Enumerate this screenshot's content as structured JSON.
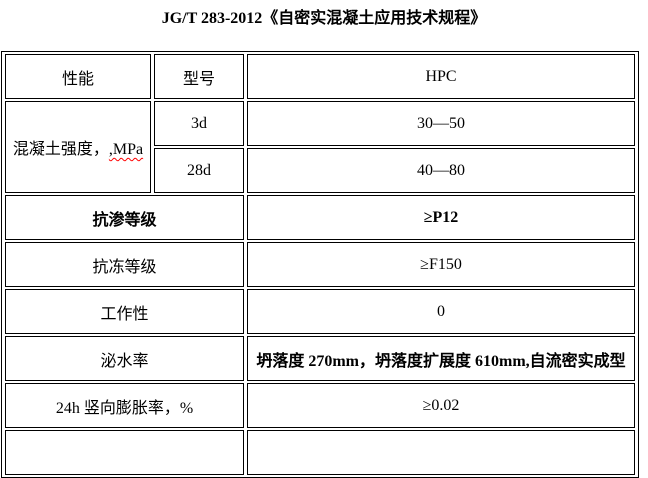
{
  "title": "JG/T 283-2012《自密实混凝土应用技术规程》",
  "table": {
    "header": {
      "performance": "性能",
      "model": "型号",
      "grade": "HPC"
    },
    "strength": {
      "label": "混凝土强度，",
      "unit": ",MPa",
      "rows": [
        {
          "age": "3d",
          "value": "30—50"
        },
        {
          "age": "28d",
          "value": "40—80"
        }
      ]
    },
    "rows": [
      {
        "label": "抗渗等级",
        "value": "≥P12"
      },
      {
        "label": "抗冻等级",
        "value": "≥F150"
      },
      {
        "label": "工作性",
        "value": "0"
      },
      {
        "label": "泌水率",
        "value": "坍落度 270mm，坍落度扩展度 610mm,自流密实成型"
      },
      {
        "label": "24h 竖向膨胀率，%",
        "value": "≥0.02"
      },
      {
        "label": "",
        "value": ""
      }
    ]
  },
  "colors": {
    "text": "#000000",
    "border": "#000000",
    "spellcheck_squiggle": "#ff0000",
    "background": "#ffffff"
  }
}
